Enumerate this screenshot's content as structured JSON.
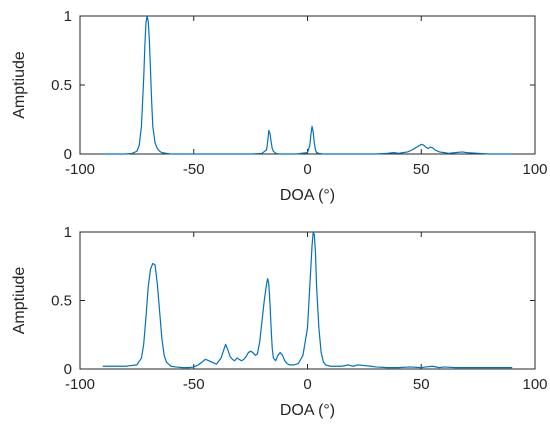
{
  "chart_data": [
    {
      "type": "line",
      "xlabel": "DOA (°)",
      "ylabel": "Amptiude",
      "xlim": [
        -100,
        100
      ],
      "ylim": [
        0,
        1
      ],
      "xticks": [
        "-100",
        "-50",
        "0",
        "50",
        "100"
      ],
      "yticks": [
        "0",
        "0.5",
        "1"
      ],
      "grid": false,
      "line_color": "#0072BD",
      "series": [
        {
          "x": [
            -90,
            -85,
            -80,
            -77,
            -75,
            -74,
            -73,
            -72,
            -71.5,
            -71,
            -70.5,
            -70,
            -69.5,
            -69,
            -68.5,
            -68,
            -67,
            -66,
            -65,
            -64,
            -62,
            -60,
            -55,
            -50,
            -45,
            -40,
            -35,
            -30,
            -25,
            -20,
            -18,
            -17.5,
            -17,
            -16.5,
            -16,
            -15.5,
            -15,
            -14,
            -12,
            -10,
            -5,
            0,
            1,
            1.5,
            2,
            2.5,
            3,
            3.5,
            4,
            5,
            7,
            10,
            15,
            20,
            25,
            30,
            35,
            38,
            40,
            42,
            44,
            46,
            48,
            49,
            50,
            51,
            52,
            53,
            54,
            55,
            56,
            58,
            60,
            62,
            65,
            68,
            70,
            75,
            80,
            85,
            90
          ],
          "y": [
            0.0,
            0.0,
            0.0,
            0.005,
            0.02,
            0.06,
            0.2,
            0.55,
            0.78,
            0.95,
            1.0,
            0.96,
            0.82,
            0.6,
            0.38,
            0.2,
            0.08,
            0.04,
            0.02,
            0.01,
            0.005,
            0.0,
            0.0,
            0.0,
            0.0,
            0.0,
            0.0,
            0.0,
            0.0,
            0.005,
            0.03,
            0.09,
            0.17,
            0.15,
            0.09,
            0.04,
            0.02,
            0.005,
            0.0,
            0.0,
            0.0,
            0.01,
            0.06,
            0.14,
            0.2,
            0.16,
            0.08,
            0.03,
            0.01,
            0.005,
            0.0,
            0.0,
            0.0,
            0.0,
            0.0,
            0.0,
            0.005,
            0.01,
            0.005,
            0.01,
            0.015,
            0.03,
            0.05,
            0.06,
            0.07,
            0.065,
            0.05,
            0.04,
            0.05,
            0.045,
            0.03,
            0.015,
            0.01,
            0.005,
            0.01,
            0.015,
            0.01,
            0.005,
            0.0,
            0.0,
            0.0
          ]
        }
      ]
    },
    {
      "type": "line",
      "xlabel": "DOA (°)",
      "ylabel": "Amptiude",
      "xlim": [
        -100,
        100
      ],
      "ylim": [
        0,
        1
      ],
      "xticks": [
        "-100",
        "-50",
        "0",
        "50",
        "100"
      ],
      "yticks": [
        "0",
        "0.5",
        "1"
      ],
      "grid": false,
      "line_color": "#0072BD",
      "series": [
        {
          "x": [
            -90,
            -85,
            -80,
            -75,
            -73,
            -72,
            -71,
            -70,
            -69,
            -68,
            -67,
            -66,
            -65,
            -64,
            -63,
            -62,
            -60,
            -58,
            -55,
            -52,
            -50,
            -48,
            -46,
            -45,
            -44,
            -42,
            -40,
            -38,
            -37,
            -36,
            -35,
            -34,
            -33,
            -32,
            -31,
            -30,
            -29,
            -28,
            -27,
            -26,
            -25,
            -24,
            -23,
            -22,
            -21,
            -20,
            -19,
            -18,
            -17.5,
            -17,
            -16.5,
            -16,
            -15.5,
            -15,
            -14,
            -13,
            -12,
            -11,
            -10,
            -9,
            -8,
            -6,
            -4,
            -2,
            0,
            1,
            2,
            2.5,
            3,
            3.5,
            4,
            5,
            6,
            7,
            8,
            10,
            12,
            15,
            18,
            20,
            22,
            25,
            28,
            30,
            35,
            40,
            45,
            50,
            52,
            55,
            58,
            60,
            65,
            70,
            75,
            80,
            85,
            90
          ],
          "y": [
            0.02,
            0.02,
            0.02,
            0.03,
            0.08,
            0.18,
            0.38,
            0.6,
            0.73,
            0.77,
            0.76,
            0.62,
            0.42,
            0.22,
            0.1,
            0.05,
            0.02,
            0.015,
            0.01,
            0.01,
            0.015,
            0.03,
            0.055,
            0.07,
            0.065,
            0.05,
            0.035,
            0.08,
            0.13,
            0.18,
            0.14,
            0.09,
            0.07,
            0.06,
            0.08,
            0.07,
            0.06,
            0.07,
            0.09,
            0.12,
            0.13,
            0.12,
            0.1,
            0.11,
            0.2,
            0.35,
            0.5,
            0.62,
            0.66,
            0.62,
            0.48,
            0.3,
            0.15,
            0.08,
            0.06,
            0.1,
            0.12,
            0.1,
            0.06,
            0.04,
            0.03,
            0.03,
            0.04,
            0.1,
            0.3,
            0.6,
            0.9,
            1.0,
            0.98,
            0.85,
            0.6,
            0.3,
            0.12,
            0.05,
            0.03,
            0.02,
            0.02,
            0.02,
            0.03,
            0.02,
            0.03,
            0.025,
            0.02,
            0.015,
            0.01,
            0.01,
            0.015,
            0.01,
            0.015,
            0.02,
            0.01,
            0.015,
            0.01,
            0.01,
            0.01,
            0.01,
            0.01,
            0.01
          ]
        }
      ]
    }
  ]
}
